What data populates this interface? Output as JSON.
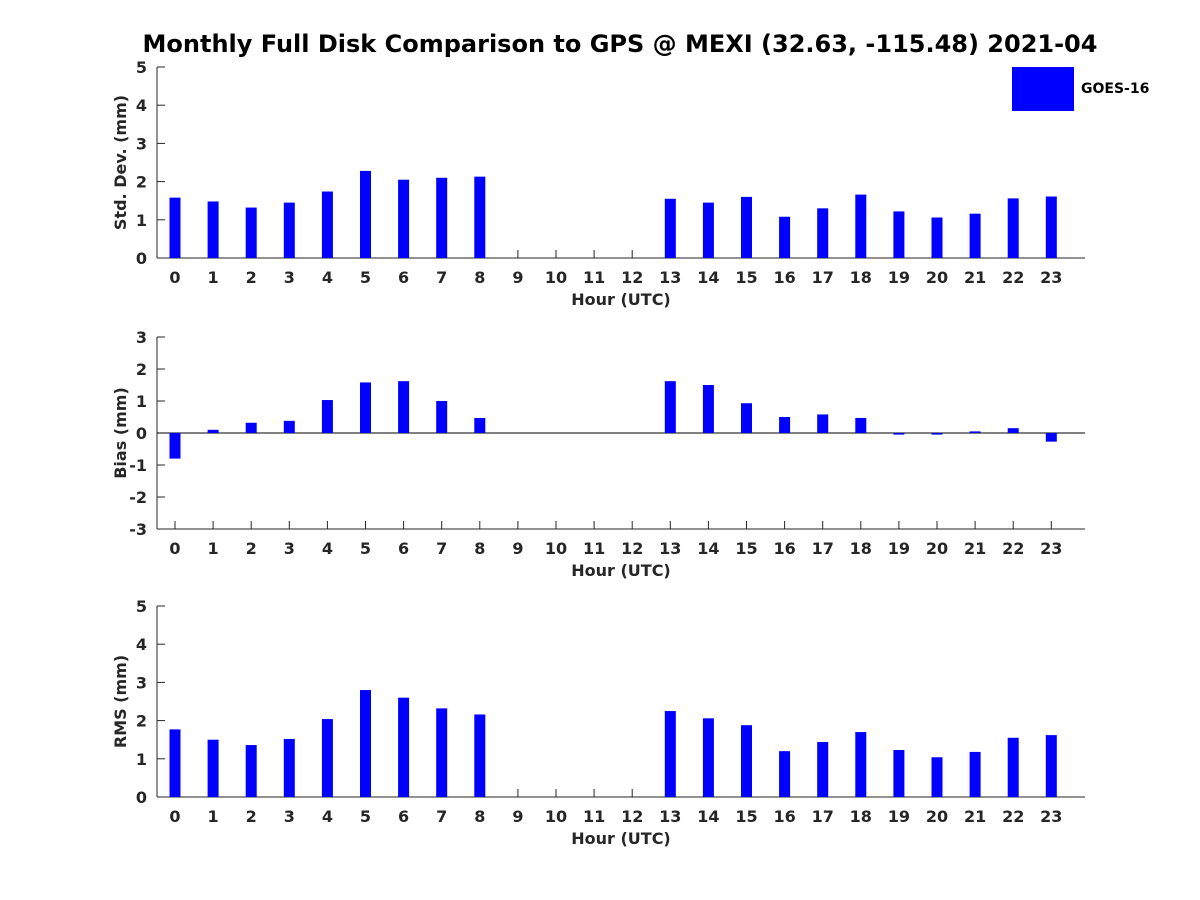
{
  "title": "Monthly Full Disk Comparison to GPS @ MEXI (32.63, -115.48) 2021-04",
  "legend": {
    "label": "GOES-16",
    "color": "#0000ff",
    "position": "top-right"
  },
  "chart_data": [
    {
      "type": "bar",
      "id": "std",
      "ylabel": "Std. Dev. (mm)",
      "xlabel": "Hour (UTC)",
      "ylim": [
        0,
        5
      ],
      "yticks": [
        0,
        1,
        2,
        3,
        4,
        5
      ],
      "categories": [
        "0",
        "1",
        "2",
        "3",
        "4",
        "5",
        "6",
        "7",
        "8",
        "9",
        "10",
        "11",
        "12",
        "13",
        "14",
        "15",
        "16",
        "17",
        "18",
        "19",
        "20",
        "21",
        "22",
        "23"
      ],
      "series": [
        {
          "name": "GOES-16",
          "color": "#0000ff",
          "values": [
            1.58,
            1.48,
            1.32,
            1.45,
            1.74,
            2.28,
            2.05,
            2.1,
            2.13,
            null,
            null,
            null,
            null,
            1.55,
            1.45,
            1.6,
            1.08,
            1.3,
            1.66,
            1.22,
            1.06,
            1.16,
            1.56,
            1.61
          ]
        }
      ]
    },
    {
      "type": "bar",
      "id": "bias",
      "ylabel": "Bias (mm)",
      "xlabel": "Hour (UTC)",
      "ylim": [
        -3,
        3
      ],
      "yticks": [
        -3,
        -2,
        -1,
        0,
        1,
        2,
        3
      ],
      "categories": [
        "0",
        "1",
        "2",
        "3",
        "4",
        "5",
        "6",
        "7",
        "8",
        "9",
        "10",
        "11",
        "12",
        "13",
        "14",
        "15",
        "16",
        "17",
        "18",
        "19",
        "20",
        "21",
        "22",
        "23"
      ],
      "series": [
        {
          "name": "GOES-16",
          "color": "#0000ff",
          "values": [
            -0.8,
            0.1,
            0.32,
            0.38,
            1.03,
            1.58,
            1.62,
            1.0,
            0.47,
            null,
            null,
            null,
            null,
            1.62,
            1.5,
            0.93,
            0.5,
            0.58,
            0.47,
            -0.05,
            -0.05,
            0.05,
            0.15,
            -0.27
          ]
        }
      ]
    },
    {
      "type": "bar",
      "id": "rms",
      "ylabel": "RMS (mm)",
      "xlabel": "Hour (UTC)",
      "ylim": [
        0,
        5
      ],
      "yticks": [
        0,
        1,
        2,
        3,
        4,
        5
      ],
      "categories": [
        "0",
        "1",
        "2",
        "3",
        "4",
        "5",
        "6",
        "7",
        "8",
        "9",
        "10",
        "11",
        "12",
        "13",
        "14",
        "15",
        "16",
        "17",
        "18",
        "19",
        "20",
        "21",
        "22",
        "23"
      ],
      "series": [
        {
          "name": "GOES-16",
          "color": "#0000ff",
          "values": [
            1.77,
            1.5,
            1.36,
            1.52,
            2.04,
            2.8,
            2.6,
            2.32,
            2.16,
            null,
            null,
            null,
            null,
            2.25,
            2.06,
            1.88,
            1.2,
            1.44,
            1.7,
            1.23,
            1.04,
            1.18,
            1.55,
            1.62
          ]
        }
      ]
    }
  ]
}
